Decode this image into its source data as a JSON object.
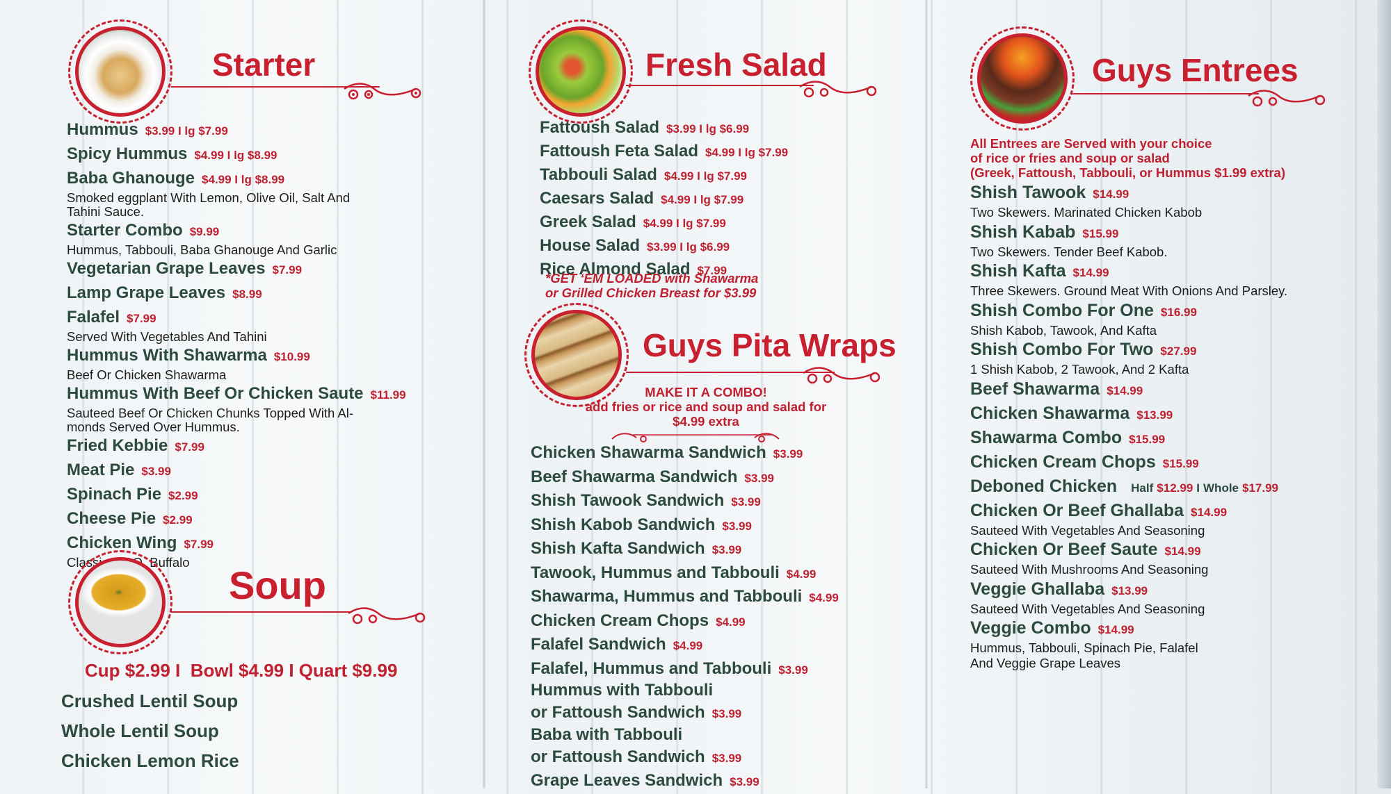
{
  "colors": {
    "accent_red": "#c8202f",
    "item_green": "#2c4a3e",
    "background": "#eef3f6"
  },
  "starter": {
    "title": "Starter",
    "image": "hummus-bowl-image",
    "items": [
      {
        "name": "Hummus",
        "price": "$3.99 I lg $7.99"
      },
      {
        "name": "Spicy Hummus",
        "price": "$4.99 I lg $8.99"
      },
      {
        "name": "Baba Ghanouge",
        "price": "$4.99 I lg $8.99",
        "desc": [
          "Smoked eggplant With Lemon, Olive Oil, Salt And",
          "Tahini Sauce."
        ]
      },
      {
        "name": "Starter Combo",
        "price": "$9.99",
        "desc": [
          "Hummus, Tabbouli, Baba Ghanouge And Garlic"
        ]
      },
      {
        "name": "Vegetarian Grape Leaves",
        "price": "$7.99"
      },
      {
        "name": "Lamp Grape Leaves",
        "price": "$8.99"
      },
      {
        "name": "Falafel",
        "price": "$7.99",
        "desc": [
          "Served With Vegetables And Tahini"
        ]
      },
      {
        "name": "Hummus With Shawarma",
        "price": "$10.99",
        "desc": [
          "Beef Or Chicken Shawarma"
        ]
      },
      {
        "name": "Hummus With Beef Or Chicken Saute",
        "price": "$11.99",
        "desc": [
          "Sauteed Beef Or Chicken Chunks Topped With Al-",
          "monds Served Over Hummus."
        ]
      },
      {
        "name": "Fried Kebbie",
        "price": "$7.99"
      },
      {
        "name": "Meat Pie",
        "price": "$3.99"
      },
      {
        "name": "Spinach Pie",
        "price": "$2.99"
      },
      {
        "name": "Cheese Pie",
        "price": "$2.99"
      },
      {
        "name": "Chicken Wing",
        "price": "$7.99",
        "desc": [
          "Classic, BBQ, Buffalo"
        ]
      }
    ]
  },
  "soup": {
    "title": "Soup",
    "image": "soup-bowl-image",
    "sizes": "Cup $2.99 I  Bowl $4.99 I Quart $9.99",
    "items": [
      {
        "name": "Crushed Lentil Soup"
      },
      {
        "name": "Whole Lentil Soup"
      },
      {
        "name": "Chicken Lemon Rice"
      }
    ]
  },
  "salad": {
    "title": "Fresh Salad",
    "image": "salad-image",
    "items": [
      {
        "name": "Fattoush Salad",
        "price": "$3.99 I lg $6.99"
      },
      {
        "name": "Fattoush Feta Salad",
        "price": "$4.99 I lg $7.99"
      },
      {
        "name": "Tabbouli Salad",
        "price": "$4.99 I lg $7.99"
      },
      {
        "name": "Caesars Salad",
        "price": "$4.99 I lg $7.99"
      },
      {
        "name": "Greek Salad",
        "price": "$4.99 I lg $7.99"
      },
      {
        "name": "House Salad",
        "price": "$3.99 I lg $6.99"
      },
      {
        "name": "Rice Almond Salad",
        "price": "$7.99"
      }
    ],
    "note": [
      "*GET ‘EM LOADED with Shawarma",
      "or Grilled Chicken Breast for $3.99"
    ]
  },
  "wraps": {
    "title": "Guys Pita Wraps",
    "image": "pita-wraps-image",
    "combo": [
      "MAKE IT A COMBO!",
      "add fries or rice and soup and salad for",
      "$4.99 extra"
    ],
    "items": [
      {
        "name": [
          "Chicken Shawarma Sandwich"
        ],
        "price": "$3.99"
      },
      {
        "name": [
          "Beef Shawarma Sandwich"
        ],
        "price": "$3.99"
      },
      {
        "name": [
          "Shish Tawook Sandwich"
        ],
        "price": "$3.99"
      },
      {
        "name": [
          "Shish Kabob Sandwich"
        ],
        "price": "$3.99"
      },
      {
        "name": [
          "Shish Kafta Sandwich"
        ],
        "price": "$3.99"
      },
      {
        "name": [
          "Tawook, Hummus and Tabbouli"
        ],
        "price": "$4.99"
      },
      {
        "name": [
          "Shawarma, Hummus and Tabbouli"
        ],
        "price": "$4.99"
      },
      {
        "name": [
          "Chicken Cream Chops"
        ],
        "price": "$4.99"
      },
      {
        "name": [
          "Falafel Sandwich"
        ],
        "price": "$4.99"
      },
      {
        "name": [
          "Falafel, Hummus and Tabbouli"
        ],
        "price": "$3.99"
      },
      {
        "name": [
          "Hummus with Tabbouli",
          "or Fattoush Sandwich"
        ],
        "price": "$3.99"
      },
      {
        "name": [
          "Baba with Tabbouli",
          "or Fattoush Sandwich"
        ],
        "price": "$3.99"
      },
      {
        "name": [
          "Grape Leaves Sandwich"
        ],
        "price": "$3.99"
      }
    ]
  },
  "entrees": {
    "title": "Guys Entrees",
    "image": "kabob-skewers-image",
    "note": [
      "All Entrees are Served with your choice",
      "of rice or fries and soup or salad",
      "(Greek, Fattoush, Tabbouli, or Hummus $1.99 extra)"
    ],
    "items": [
      {
        "name": "Shish Tawook",
        "price": "$14.99",
        "desc": [
          "Two Skewers. Marinated Chicken Kabob"
        ]
      },
      {
        "name": "Shish Kabab",
        "price": "$15.99",
        "desc": [
          "Two Skewers. Tender Beef Kabob."
        ]
      },
      {
        "name": "Shish Kafta",
        "price": "$14.99",
        "desc": [
          "Three Skewers. Ground Meat With Onions And Parsley."
        ]
      },
      {
        "name": "Shish Combo For One",
        "price": "$16.99",
        "desc": [
          "Shish Kabob, Tawook, And Kafta"
        ]
      },
      {
        "name": "Shish Combo For Two",
        "price": "$27.99",
        "desc": [
          "1 Shish Kabob, 2 Tawook, And 2 Kafta"
        ]
      },
      {
        "name": "Beef Shawarma",
        "price": "$14.99"
      },
      {
        "name": "Chicken Shawarma",
        "price": "$13.99"
      },
      {
        "name": "Shawarma Combo",
        "price": "$15.99"
      },
      {
        "name": "Chicken Cream Chops",
        "price": "$15.99"
      },
      {
        "name": "Deboned Chicken",
        "price_parts": [
          "Half",
          "$12.99",
          "I",
          "Whole",
          "$17.99"
        ]
      },
      {
        "name": "Chicken Or Beef Ghallaba",
        "price": "$14.99",
        "desc": [
          "Sauteed With Vegetables And Seasoning"
        ]
      },
      {
        "name": "Chicken Or Beef Saute",
        "price": "$14.99",
        "desc": [
          "Sauteed With Mushrooms And Seasoning"
        ]
      },
      {
        "name": "Veggie Ghallaba",
        "price": "$13.99",
        "desc": [
          "Sauteed With Vegetables And Seasoning"
        ]
      },
      {
        "name": "Veggie Combo",
        "price": "$14.99",
        "desc": [
          "Hummus, Tabbouli, Spinach Pie, Falafel",
          "And Veggie Grape Leaves"
        ]
      }
    ]
  }
}
